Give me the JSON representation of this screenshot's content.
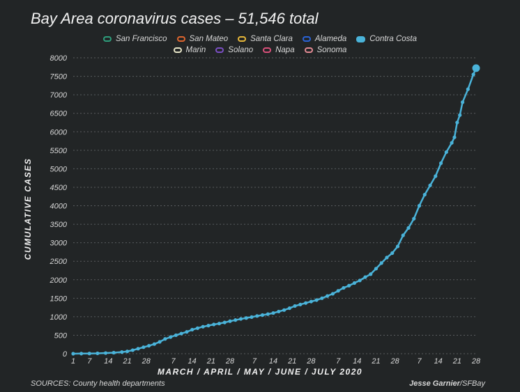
{
  "title": "Bay Area coronavirus cases – 51,546 total",
  "legend": [
    {
      "name": "San Francisco",
      "color": "#2e9e7c",
      "row": 1
    },
    {
      "name": "San Mateo",
      "color": "#e0662e",
      "row": 1
    },
    {
      "name": "Santa Clara",
      "color": "#e8b83a",
      "row": 1
    },
    {
      "name": "Alameda",
      "color": "#2a63d8",
      "row": 1
    },
    {
      "name": "Contra Costa",
      "color": "#4ab3d9",
      "row": 1,
      "active": true
    },
    {
      "name": "Marin",
      "color": "#e8e6c8",
      "row": 2
    },
    {
      "name": "Solano",
      "color": "#7b4fc4",
      "row": 2
    },
    {
      "name": "Napa",
      "color": "#d9507a",
      "row": 2
    },
    {
      "name": "Sonoma",
      "color": "#e28a93",
      "row": 2
    }
  ],
  "ylabel": "CUMULATIVE CASES",
  "xlabel": "MARCH / APRIL / MAY / JUNE / JULY 2020",
  "sources": "SOURCES: County health departments",
  "credit_name": "Jesse Garnier",
  "credit_outlet": "/SFBay",
  "chart_data": {
    "type": "line",
    "title": "Bay Area coronavirus cases – 51,546 total",
    "xlabel": "MARCH / APRIL / MAY / JUNE / JULY 2020",
    "ylabel": "CUMULATIVE CASES",
    "ylim": [
      0,
      8000
    ],
    "yticks": [
      0,
      500,
      1000,
      1500,
      2000,
      2500,
      3000,
      3500,
      4000,
      4500,
      5000,
      5500,
      6000,
      6500,
      7000,
      7500,
      8000
    ],
    "xlim": [
      "2020-03-01",
      "2020-07-28"
    ],
    "xticks": [
      {
        "date": "2020-03-01",
        "label": "1"
      },
      {
        "date": "2020-03-07",
        "label": "7"
      },
      {
        "date": "2020-03-14",
        "label": "14"
      },
      {
        "date": "2020-03-21",
        "label": "21"
      },
      {
        "date": "2020-03-28",
        "label": "28"
      },
      {
        "date": "2020-04-07",
        "label": "7"
      },
      {
        "date": "2020-04-14",
        "label": "14"
      },
      {
        "date": "2020-04-21",
        "label": "21"
      },
      {
        "date": "2020-04-28",
        "label": "28"
      },
      {
        "date": "2020-05-07",
        "label": "7"
      },
      {
        "date": "2020-05-14",
        "label": "14"
      },
      {
        "date": "2020-05-21",
        "label": "21"
      },
      {
        "date": "2020-05-28",
        "label": "28"
      },
      {
        "date": "2020-06-07",
        "label": "7"
      },
      {
        "date": "2020-06-14",
        "label": "14"
      },
      {
        "date": "2020-06-21",
        "label": "21"
      },
      {
        "date": "2020-06-28",
        "label": "28"
      },
      {
        "date": "2020-07-07",
        "label": "7"
      },
      {
        "date": "2020-07-14",
        "label": "14"
      },
      {
        "date": "2020-07-21",
        "label": "21"
      },
      {
        "date": "2020-07-28",
        "label": "28"
      }
    ],
    "grid": true,
    "series": [
      {
        "name": "Contra Costa",
        "color": "#4ab3d9",
        "points": [
          {
            "x": "2020-03-01",
            "y": 0
          },
          {
            "x": "2020-03-04",
            "y": 3
          },
          {
            "x": "2020-03-07",
            "y": 5
          },
          {
            "x": "2020-03-10",
            "y": 10
          },
          {
            "x": "2020-03-13",
            "y": 18
          },
          {
            "x": "2020-03-16",
            "y": 28
          },
          {
            "x": "2020-03-19",
            "y": 45
          },
          {
            "x": "2020-03-21",
            "y": 62
          },
          {
            "x": "2020-03-23",
            "y": 95
          },
          {
            "x": "2020-03-25",
            "y": 135
          },
          {
            "x": "2020-03-27",
            "y": 175
          },
          {
            "x": "2020-03-29",
            "y": 215
          },
          {
            "x": "2020-03-31",
            "y": 260
          },
          {
            "x": "2020-04-02",
            "y": 320
          },
          {
            "x": "2020-04-04",
            "y": 400
          },
          {
            "x": "2020-04-06",
            "y": 450
          },
          {
            "x": "2020-04-08",
            "y": 500
          },
          {
            "x": "2020-04-10",
            "y": 545
          },
          {
            "x": "2020-04-12",
            "y": 590
          },
          {
            "x": "2020-04-14",
            "y": 650
          },
          {
            "x": "2020-04-16",
            "y": 690
          },
          {
            "x": "2020-04-18",
            "y": 730
          },
          {
            "x": "2020-04-20",
            "y": 760
          },
          {
            "x": "2020-04-22",
            "y": 790
          },
          {
            "x": "2020-04-24",
            "y": 815
          },
          {
            "x": "2020-04-26",
            "y": 845
          },
          {
            "x": "2020-04-28",
            "y": 880
          },
          {
            "x": "2020-04-30",
            "y": 910
          },
          {
            "x": "2020-05-02",
            "y": 940
          },
          {
            "x": "2020-05-04",
            "y": 965
          },
          {
            "x": "2020-05-06",
            "y": 990
          },
          {
            "x": "2020-05-08",
            "y": 1020
          },
          {
            "x": "2020-05-10",
            "y": 1045
          },
          {
            "x": "2020-05-12",
            "y": 1070
          },
          {
            "x": "2020-05-14",
            "y": 1100
          },
          {
            "x": "2020-05-16",
            "y": 1140
          },
          {
            "x": "2020-05-18",
            "y": 1180
          },
          {
            "x": "2020-05-20",
            "y": 1230
          },
          {
            "x": "2020-05-22",
            "y": 1290
          },
          {
            "x": "2020-05-24",
            "y": 1330
          },
          {
            "x": "2020-05-26",
            "y": 1370
          },
          {
            "x": "2020-05-28",
            "y": 1410
          },
          {
            "x": "2020-05-30",
            "y": 1450
          },
          {
            "x": "2020-06-01",
            "y": 1500
          },
          {
            "x": "2020-06-03",
            "y": 1560
          },
          {
            "x": "2020-06-05",
            "y": 1620
          },
          {
            "x": "2020-06-07",
            "y": 1700
          },
          {
            "x": "2020-06-09",
            "y": 1780
          },
          {
            "x": "2020-06-11",
            "y": 1840
          },
          {
            "x": "2020-06-13",
            "y": 1910
          },
          {
            "x": "2020-06-15",
            "y": 1980
          },
          {
            "x": "2020-06-17",
            "y": 2070
          },
          {
            "x": "2020-06-19",
            "y": 2150
          },
          {
            "x": "2020-06-21",
            "y": 2300
          },
          {
            "x": "2020-06-23",
            "y": 2450
          },
          {
            "x": "2020-06-25",
            "y": 2600
          },
          {
            "x": "2020-06-27",
            "y": 2720
          },
          {
            "x": "2020-06-29",
            "y": 2900
          },
          {
            "x": "2020-07-01",
            "y": 3200
          },
          {
            "x": "2020-07-03",
            "y": 3400
          },
          {
            "x": "2020-07-05",
            "y": 3650
          },
          {
            "x": "2020-07-07",
            "y": 4000
          },
          {
            "x": "2020-07-09",
            "y": 4300
          },
          {
            "x": "2020-07-11",
            "y": 4550
          },
          {
            "x": "2020-07-13",
            "y": 4800
          },
          {
            "x": "2020-07-15",
            "y": 5150
          },
          {
            "x": "2020-07-17",
            "y": 5450
          },
          {
            "x": "2020-07-19",
            "y": 5700
          },
          {
            "x": "2020-07-20",
            "y": 5850
          },
          {
            "x": "2020-07-21",
            "y": 6250
          },
          {
            "x": "2020-07-22",
            "y": 6450
          },
          {
            "x": "2020-07-23",
            "y": 6800
          },
          {
            "x": "2020-07-25",
            "y": 7150
          },
          {
            "x": "2020-07-27",
            "y": 7550
          },
          {
            "x": "2020-07-28",
            "y": 7720
          }
        ]
      }
    ]
  }
}
